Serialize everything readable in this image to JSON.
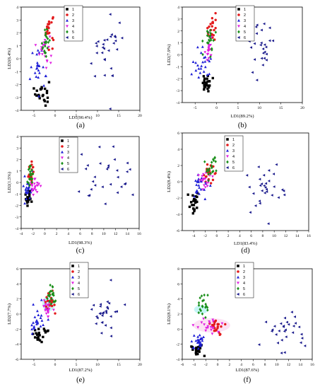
{
  "chart_data": [
    {
      "panel": "(a)",
      "type": "scatter",
      "xlabel": "LD1(90.4%)",
      "ylabel": "LD2(6.4%)",
      "xlim": [
        -8,
        20
      ],
      "ylim": [
        -4,
        4
      ],
      "xticks": [
        -5,
        0,
        5,
        10,
        15,
        20
      ],
      "yticks": [
        -4,
        -3,
        -2,
        -1,
        0,
        1,
        2,
        3,
        4
      ],
      "legend": [
        "1",
        "2",
        "3",
        "4",
        "5",
        "6"
      ],
      "clusters": [
        {
          "label": "1",
          "cx": -3.0,
          "cy": -2.6,
          "sx": 0.8,
          "sy": 0.5,
          "n": 22
        },
        {
          "label": "2",
          "cx": -1.5,
          "cy": 2.4,
          "sx": 0.6,
          "sy": 0.6,
          "n": 22
        },
        {
          "label": "3",
          "cx": -4.0,
          "cy": -0.8,
          "sx": 1.1,
          "sy": 1.0,
          "n": 24
        },
        {
          "label": "4",
          "cx": -2.5,
          "cy": 0.8,
          "sx": 0.6,
          "sy": 0.7,
          "n": 20
        },
        {
          "label": "5",
          "cx": -2.3,
          "cy": 1.3,
          "sx": 0.5,
          "sy": 0.6,
          "n": 20
        },
        {
          "label": "6",
          "cx": 12.0,
          "cy": 0.4,
          "sx": 2.2,
          "sy": 1.4,
          "n": 30
        }
      ]
    },
    {
      "panel": "(b)",
      "type": "scatter",
      "xlabel": "LD1(89.2%)",
      "ylabel": "LD2(7.9%)",
      "xlim": [
        -8,
        20
      ],
      "ylim": [
        -4,
        4
      ],
      "xticks": [
        -5,
        0,
        5,
        10,
        15,
        20
      ],
      "yticks": [
        -4,
        -3,
        -2,
        -1,
        0,
        1,
        2,
        3,
        4
      ],
      "legend": [
        "1",
        "2",
        "3",
        "4",
        "5",
        "6"
      ],
      "clusters": [
        {
          "label": "1",
          "cx": -2.4,
          "cy": -2.4,
          "sx": 0.6,
          "sy": 0.4,
          "n": 22
        },
        {
          "label": "2",
          "cx": -1.0,
          "cy": 2.2,
          "sx": 0.5,
          "sy": 0.6,
          "n": 22
        },
        {
          "label": "3",
          "cx": -3.3,
          "cy": -0.7,
          "sx": 1.0,
          "sy": 0.9,
          "n": 24
        },
        {
          "label": "4",
          "cx": -1.8,
          "cy": 0.6,
          "sx": 0.5,
          "sy": 0.6,
          "n": 20
        },
        {
          "label": "5",
          "cx": -1.6,
          "cy": 1.4,
          "sx": 0.5,
          "sy": 0.6,
          "n": 20
        },
        {
          "label": "6",
          "cx": 10.0,
          "cy": 0.6,
          "sx": 2.0,
          "sy": 1.3,
          "n": 30
        }
      ]
    },
    {
      "panel": "(c)",
      "type": "scatter",
      "xlabel": "LD1(98.3%)",
      "ylabel": "LD2(1.5%)",
      "xlim": [
        -4,
        16
      ],
      "ylim": [
        -4,
        4
      ],
      "xticks": [
        -4,
        -2,
        0,
        2,
        4,
        6,
        8,
        10,
        12,
        14,
        16
      ],
      "yticks": [
        -4,
        -3,
        -2,
        -1,
        0,
        1,
        2,
        3,
        4
      ],
      "legend": [
        "1",
        "2",
        "3",
        "4",
        "5",
        "6"
      ],
      "clusters": [
        {
          "label": "1",
          "cx": -2.7,
          "cy": -1.3,
          "sx": 0.4,
          "sy": 0.4,
          "n": 22
        },
        {
          "label": "2",
          "cx": -2.2,
          "cy": 0.8,
          "sx": 0.3,
          "sy": 0.5,
          "n": 22
        },
        {
          "label": "3",
          "cx": -2.9,
          "cy": -0.5,
          "sx": 0.4,
          "sy": 0.6,
          "n": 24
        },
        {
          "label": "4",
          "cx": -1.8,
          "cy": -0.4,
          "sx": 0.5,
          "sy": 0.4,
          "n": 20
        },
        {
          "label": "5",
          "cx": -2.4,
          "cy": 0.4,
          "sx": 0.3,
          "sy": 0.6,
          "n": 20
        },
        {
          "label": "6",
          "cx": 10.5,
          "cy": 0.2,
          "sx": 2.0,
          "sy": 1.7,
          "n": 30
        }
      ]
    },
    {
      "panel": "(d)",
      "type": "scatter",
      "xlabel": "LD1(83.4%)",
      "ylabel": "LD2(8.4%)",
      "xlim": [
        -6,
        16
      ],
      "ylim": [
        -6,
        6
      ],
      "xticks": [
        -4,
        -2,
        0,
        2,
        4,
        6,
        8,
        10,
        12,
        14,
        16
      ],
      "yticks": [
        -6,
        -4,
        -2,
        0,
        2,
        4,
        6
      ],
      "legend": [
        "1",
        "2",
        "3",
        "4",
        "5",
        "6"
      ],
      "clusters": [
        {
          "label": "1",
          "cx": -4.0,
          "cy": -2.6,
          "sx": 0.6,
          "sy": 0.7,
          "n": 22
        },
        {
          "label": "2",
          "cx": -1.6,
          "cy": 1.0,
          "sx": 0.5,
          "sy": 0.7,
          "n": 22
        },
        {
          "label": "3",
          "cx": -3.0,
          "cy": -1.0,
          "sx": 0.8,
          "sy": 0.9,
          "n": 24
        },
        {
          "label": "4",
          "cx": -2.0,
          "cy": 0.2,
          "sx": 0.5,
          "sy": 0.6,
          "n": 20
        },
        {
          "label": "5",
          "cx": -1.0,
          "cy": 2.2,
          "sx": 0.6,
          "sy": 1.1,
          "n": 20
        },
        {
          "label": "6",
          "cx": 8.8,
          "cy": -0.8,
          "sx": 1.8,
          "sy": 1.3,
          "n": 30
        }
      ]
    },
    {
      "panel": "(e)",
      "type": "scatter",
      "xlabel": "LD1(87.2%)",
      "ylabel": "LD2(7.7%)",
      "xlim": [
        -8,
        20
      ],
      "ylim": [
        -6,
        6
      ],
      "xticks": [
        -5,
        0,
        5,
        10,
        15,
        20
      ],
      "yticks": [
        -6,
        -4,
        -2,
        0,
        2,
        4,
        6
      ],
      "legend": [
        "1",
        "2",
        "3",
        "4",
        "5",
        "6"
      ],
      "clusters": [
        {
          "label": "1",
          "cx": -3.2,
          "cy": -2.6,
          "sx": 0.9,
          "sy": 0.6,
          "n": 22
        },
        {
          "label": "2",
          "cx": -1.2,
          "cy": 1.8,
          "sx": 0.5,
          "sy": 0.8,
          "n": 22
        },
        {
          "label": "3",
          "cx": -4.3,
          "cy": -1.0,
          "sx": 1.1,
          "sy": 1.1,
          "n": 24
        },
        {
          "label": "4",
          "cx": -1.8,
          "cy": 0.8,
          "sx": 0.5,
          "sy": 0.6,
          "n": 20
        },
        {
          "label": "5",
          "cx": -1.0,
          "cy": 2.6,
          "sx": 0.5,
          "sy": 0.8,
          "n": 20
        },
        {
          "label": "6",
          "cx": 12.0,
          "cy": 0.0,
          "sx": 2.3,
          "sy": 1.4,
          "n": 30
        }
      ]
    },
    {
      "panel": "(f)",
      "type": "scatter",
      "xlabel": "LD1(87.6%)",
      "ylabel": "LD2(8.1%)",
      "xlim": [
        -6,
        16
      ],
      "ylim": [
        -4,
        8
      ],
      "xticks": [
        -6,
        -4,
        -2,
        0,
        2,
        4,
        6,
        8,
        10,
        12,
        14,
        16
      ],
      "yticks": [
        -4,
        -2,
        0,
        2,
        4,
        6,
        8
      ],
      "legend": [
        "1",
        "2",
        "3",
        "4",
        "5",
        "6"
      ],
      "clusters": [
        {
          "label": "1",
          "cx": -3.5,
          "cy": -2.8,
          "sx": 0.5,
          "sy": 0.4,
          "n": 22
        },
        {
          "label": "2",
          "cx": -0.2,
          "cy": 0.4,
          "sx": 0.7,
          "sy": 0.5,
          "n": 22
        },
        {
          "label": "3",
          "cx": -3.4,
          "cy": -1.6,
          "sx": 0.6,
          "sy": 0.6,
          "n": 24
        },
        {
          "label": "4",
          "cx": -2.0,
          "cy": 0.6,
          "sx": 1.1,
          "sy": 0.6,
          "n": 20
        },
        {
          "label": "5",
          "cx": -2.6,
          "cy": 3.0,
          "sx": 0.6,
          "sy": 0.9,
          "n": 20
        },
        {
          "label": "6",
          "cx": 11.2,
          "cy": -0.6,
          "sx": 1.9,
          "sy": 1.4,
          "n": 30
        }
      ]
    }
  ],
  "legend_markers": [
    {
      "label": "1",
      "shape": "square",
      "color": "#000000"
    },
    {
      "label": "2",
      "shape": "circle",
      "color": "#e31a1c"
    },
    {
      "label": "3",
      "shape": "triangle-up",
      "color": "#1f1fd6"
    },
    {
      "label": "4",
      "shape": "triangle-down",
      "color": "#e020e0"
    },
    {
      "label": "5",
      "shape": "diamond",
      "color": "#1a8f1a"
    },
    {
      "label": "6",
      "shape": "triangle-left",
      "color": "#1a1a8c"
    }
  ],
  "highlight_colors": {
    "panel_e": "#7fe8e8",
    "panel_f": "#f6a8e0"
  }
}
